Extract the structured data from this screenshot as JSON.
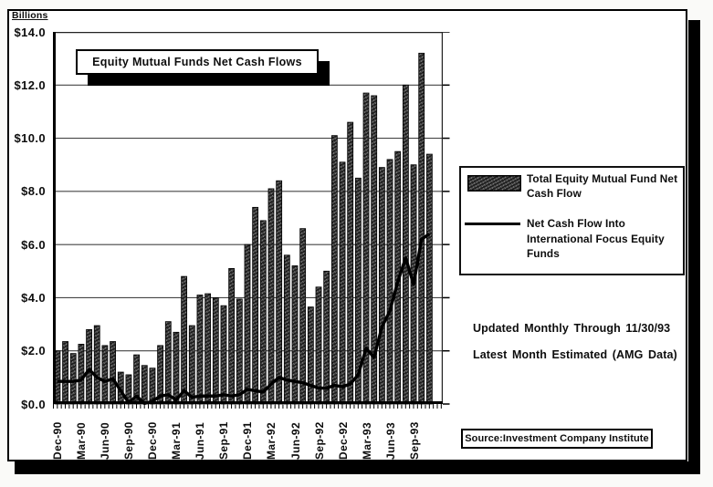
{
  "figure": {
    "y_axis_title": "Billions",
    "title": "Equity Mutual Funds Net Cash Flows",
    "y_tick_labels": [
      "$14.0",
      "$12.0",
      "$10.0",
      "$8.0",
      "$6.0",
      "$4.0",
      "$2.0",
      "$0.0"
    ],
    "x_tick_labels": [
      "Dec-90",
      "Mar-90",
      "Jun-90",
      "Sep-90",
      "Dec-90",
      "Mar-91",
      "Jun-91",
      "Sep-91",
      "Dec-91",
      "Mar-92",
      "Jun-92",
      "Sep-92",
      "Dec-92",
      "Mar-93",
      "Jun-93",
      "Sep-93"
    ],
    "legend": {
      "bar_label": "Total Equity Mutual Fund Net Cash Flow",
      "line_label": "Net Cash Flow Into International Focus Equity Funds"
    },
    "note_line1": "Updated Monthly Through 11/30/93",
    "note_line2": "Latest Month Estimated (AMG Data)",
    "source": "Source:Investment Company Institute"
  },
  "chart_data": {
    "type": "bar+line",
    "title": "Equity Mutual Funds Net Cash Flows",
    "ylabel": "Billions",
    "ylim": [
      0,
      14
    ],
    "y_tick_step": 2,
    "x_tick_every_n_bars": 3,
    "grid": "horizontal",
    "legend_position": "right",
    "series": [
      {
        "name": "Total Equity Mutual Fund Net Cash Flow",
        "type": "bar",
        "values": [
          2.0,
          2.35,
          1.9,
          2.25,
          2.8,
          2.95,
          2.2,
          2.35,
          1.2,
          1.1,
          1.85,
          1.45,
          1.35,
          2.2,
          3.1,
          2.7,
          4.8,
          2.95,
          4.1,
          4.15,
          4.0,
          3.7,
          5.1,
          3.95,
          6.0,
          7.4,
          6.9,
          8.1,
          8.4,
          5.6,
          5.2,
          6.6,
          3.65,
          4.4,
          5.0,
          10.1,
          9.1,
          10.6,
          8.5,
          11.7,
          11.6,
          8.9,
          9.2,
          9.5,
          12.0,
          9.0,
          13.2,
          9.4
        ]
      },
      {
        "name": "Net Cash Flow Into International Focus Equity Funds",
        "type": "line",
        "values": [
          0.85,
          0.85,
          0.85,
          0.9,
          1.3,
          1.0,
          0.85,
          0.95,
          0.5,
          0.05,
          0.3,
          0.02,
          0.1,
          0.3,
          0.35,
          0.15,
          0.5,
          0.25,
          0.3,
          0.3,
          0.3,
          0.35,
          0.3,
          0.35,
          0.55,
          0.5,
          0.45,
          0.75,
          1.0,
          0.9,
          0.85,
          0.8,
          0.7,
          0.6,
          0.6,
          0.7,
          0.65,
          0.75,
          1.1,
          2.1,
          1.75,
          2.9,
          3.5,
          4.6,
          5.5,
          4.5,
          6.2,
          6.4
        ]
      }
    ]
  }
}
